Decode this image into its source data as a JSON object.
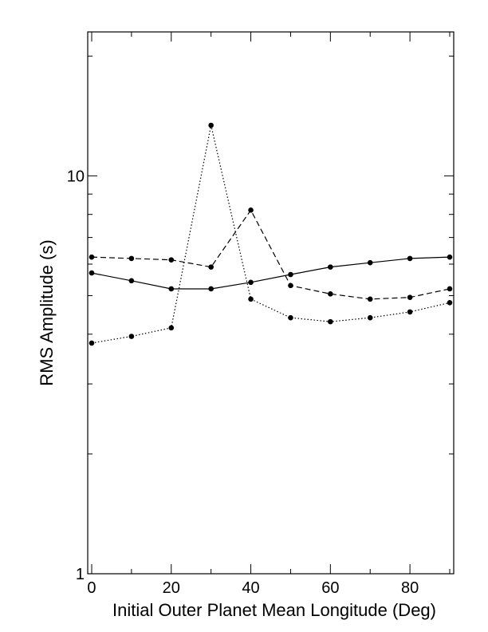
{
  "chart_data": {
    "type": "line",
    "title": "",
    "xlabel": "Initial Outer Planet Mean Longitude (Deg)",
    "ylabel": "RMS Amplitude (s)",
    "xlim": [
      -1,
      91
    ],
    "ylim": [
      1,
      23
    ],
    "yscale": "log",
    "grid": false,
    "legend": "none",
    "x_ticks": [
      0,
      20,
      40,
      60,
      80
    ],
    "x_tick_labels": [
      "0",
      "20",
      "40",
      "60",
      "80"
    ],
    "x_minor_step": 10,
    "y_ticks": [
      1,
      10
    ],
    "y_tick_labels": [
      "1",
      "10"
    ],
    "y_minor_ticks": [
      2,
      3,
      4,
      5,
      6,
      7,
      8,
      9,
      20
    ],
    "series": [
      {
        "style": "solid",
        "x": [
          0,
          10,
          20,
          30,
          40,
          50,
          60,
          70,
          80,
          90
        ],
        "y": [
          5.7,
          5.45,
          5.2,
          5.2,
          5.4,
          5.65,
          5.9,
          6.05,
          6.2,
          6.25
        ]
      },
      {
        "style": "dashed",
        "x": [
          0,
          10,
          20,
          30,
          40,
          50,
          60,
          70,
          80,
          90
        ],
        "y": [
          6.25,
          6.2,
          6.15,
          5.9,
          8.2,
          5.3,
          5.05,
          4.9,
          4.95,
          5.2
        ]
      },
      {
        "style": "dotted",
        "x": [
          0,
          10,
          20,
          30,
          40,
          50,
          60,
          70,
          80,
          90
        ],
        "y": [
          3.8,
          3.95,
          4.15,
          13.4,
          4.9,
          4.4,
          4.3,
          4.4,
          4.55,
          4.8
        ]
      }
    ],
    "colors": {
      "line": "#000000",
      "marker": "#000000"
    }
  }
}
